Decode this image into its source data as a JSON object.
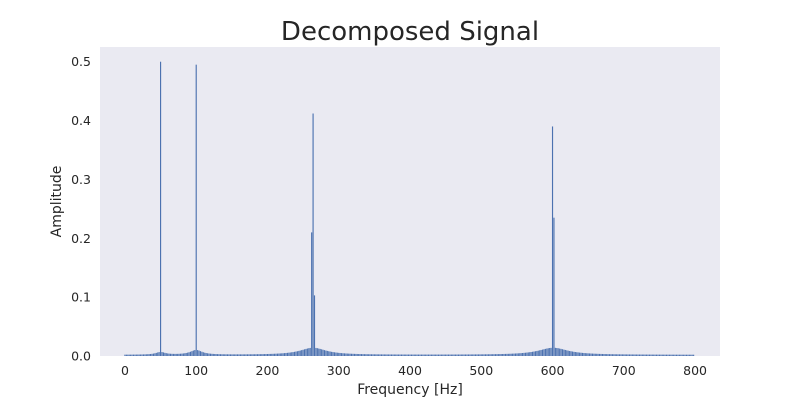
{
  "chart_data": {
    "type": "bar",
    "title": "Decomposed Signal",
    "xlabel": "Frequency [Hz]",
    "ylabel": "Amplitude",
    "xlim": [
      -35,
      835
    ],
    "ylim": [
      0,
      0.525
    ],
    "xticks": [
      0,
      100,
      200,
      300,
      400,
      500,
      600,
      700,
      800
    ],
    "xtick_labels": [
      "0",
      "100",
      "200",
      "300",
      "400",
      "500",
      "600",
      "700",
      "800"
    ],
    "yticks": [
      0.0,
      0.1,
      0.2,
      0.3,
      0.4,
      0.5
    ],
    "ytick_labels": [
      "0.0",
      "0.1",
      "0.2",
      "0.3",
      "0.4",
      "0.5"
    ],
    "grid": false,
    "bar_color": "#4c72b0",
    "background_color": "#eaeaf2",
    "series": [
      {
        "x_start": 0,
        "x_step": 2,
        "count": 400,
        "peaks": [
          {
            "x": 50,
            "value": 0.5
          },
          {
            "x": 100,
            "value": 0.495
          },
          {
            "x": 262,
            "value": 0.21
          },
          {
            "x": 264,
            "value": 0.412
          },
          {
            "x": 266,
            "value": 0.103
          },
          {
            "x": 600,
            "value": 0.39
          },
          {
            "x": 602,
            "value": 0.235
          }
        ],
        "resonances": [
          {
            "center": 50,
            "height": 0.0045,
            "width": 8
          },
          {
            "center": 100,
            "height": 0.008,
            "width": 10
          },
          {
            "center": 264,
            "height": 0.012,
            "width": 22
          },
          {
            "center": 601,
            "height": 0.012,
            "width": 25
          }
        ],
        "baseline": 0.002
      }
    ]
  }
}
